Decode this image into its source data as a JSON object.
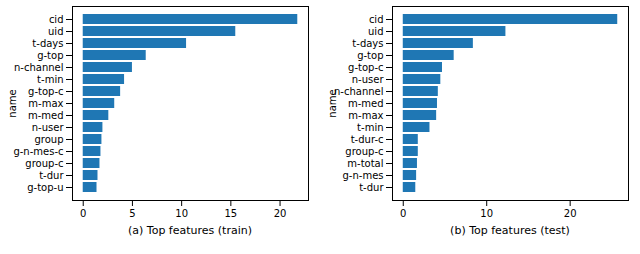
{
  "chart_data": [
    {
      "type": "bar",
      "orientation": "horizontal",
      "title": "(a) Top features (train)",
      "y_label": "name",
      "color": "#1f77b4",
      "grid": false,
      "categories": [
        "cid",
        "uid",
        "t-days",
        "g-top",
        "n-channel",
        "t-min",
        "g-top-c",
        "m-max",
        "m-med",
        "n-user",
        "group",
        "g-n-mes-c",
        "group-c",
        "t-dur",
        "g-top-u"
      ],
      "values": [
        21.8,
        15.5,
        10.5,
        6.4,
        5.0,
        4.2,
        3.8,
        3.2,
        2.6,
        2.0,
        1.9,
        1.8,
        1.7,
        1.5,
        1.4
      ],
      "xlim": [
        -1.09,
        22.89
      ],
      "xticks": [
        0,
        5,
        10,
        15,
        20
      ]
    },
    {
      "type": "bar",
      "orientation": "horizontal",
      "title": "(b) Top features (test)",
      "y_label": "name",
      "color": "#1f77b4",
      "grid": false,
      "categories": [
        "cid",
        "uid",
        "t-days",
        "g-top",
        "g-top-c",
        "n-user",
        "n-channel",
        "m-med",
        "m-max",
        "t-min",
        "t-dur-c",
        "group-c",
        "m-total",
        "g-n-mes",
        "t-dur"
      ],
      "values": [
        25.7,
        12.3,
        8.4,
        6.1,
        4.7,
        4.5,
        4.2,
        4.1,
        4.0,
        3.2,
        1.8,
        1.8,
        1.7,
        1.6,
        1.5
      ],
      "xlim": [
        -1.29,
        26.99
      ],
      "xticks": [
        0,
        10,
        20
      ]
    }
  ]
}
